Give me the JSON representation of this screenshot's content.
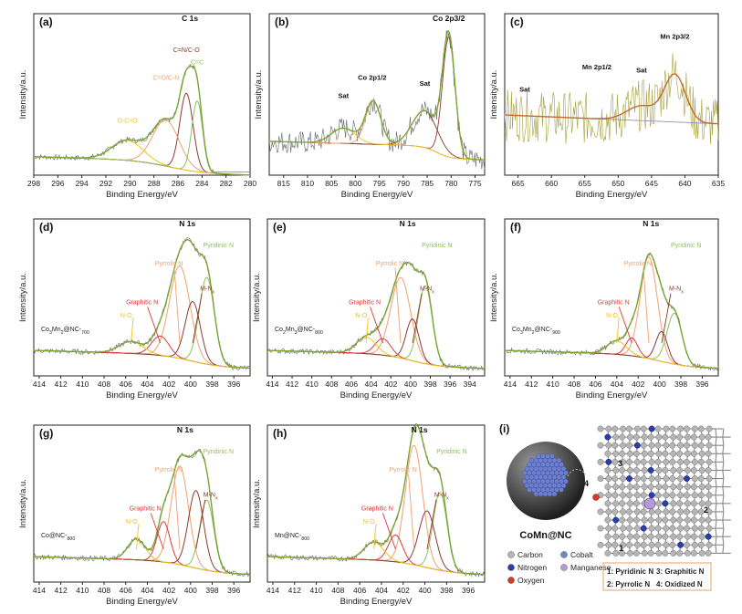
{
  "chart_data": [
    {
      "type": "line",
      "label": "(a)",
      "xlabel": "Binding Energy/eV",
      "ylabel": "Intensity/a.u.",
      "xlim": [
        298,
        280
      ],
      "xticks": [
        298,
        296,
        294,
        292,
        290,
        288,
        286,
        284,
        282,
        280
      ],
      "peaks": [
        {
          "name": "C 1s",
          "x": 285.0,
          "bold": true,
          "color": "#111111"
        },
        {
          "name": "C=N/C-O",
          "x": 285.3,
          "color": "#8b3a2f"
        },
        {
          "name": "C=O/C-N",
          "x": 287.0,
          "color": "#f0a070"
        },
        {
          "name": "C=C",
          "x": 284.4,
          "color": "#8fbf5a"
        },
        {
          "name": "O-C=O",
          "x": 290.2,
          "color": "#f0c419"
        }
      ]
    },
    {
      "type": "line",
      "label": "(b)",
      "xlabel": "Binding Energy/eV",
      "ylabel": "Intensity/a.u.",
      "xlim": [
        818,
        773
      ],
      "xticks": [
        815,
        810,
        805,
        800,
        795,
        790,
        785,
        780,
        775
      ],
      "peaks": [
        {
          "name": "Co 2p3/2",
          "x": 780.5,
          "bold": true,
          "color": "#111111"
        },
        {
          "name": "Sat",
          "x": 785.5,
          "color": "#111111"
        },
        {
          "name": "Co 2p1/2",
          "x": 796.5,
          "color": "#111111"
        },
        {
          "name": "Sat",
          "x": 802.5,
          "color": "#111111"
        }
      ]
    },
    {
      "type": "line",
      "label": "(c)",
      "xlabel": "Binding Energy/eV",
      "ylabel": "Intensity/a.u.",
      "xlim": [
        667,
        635
      ],
      "xticks": [
        665,
        660,
        655,
        650,
        645,
        640,
        635
      ],
      "peaks": [
        {
          "name": "Mn 2p3/2",
          "x": 641.5,
          "color": "#111111"
        },
        {
          "name": "Sat",
          "x": 646.5,
          "color": "#111111"
        },
        {
          "name": "Mn 2p1/2",
          "x": 653.2,
          "color": "#111111"
        },
        {
          "name": "Sat",
          "x": 664.0,
          "color": "#111111"
        }
      ]
    },
    {
      "type": "line",
      "label": "(d)",
      "sample": "Co3Mn2@NC-700",
      "xlabel": "Binding Energy/eV",
      "ylabel": "Intensity/a.u.",
      "xlim": [
        414.5,
        394.5
      ],
      "xticks": [
        414,
        412,
        410,
        408,
        406,
        404,
        402,
        400,
        398,
        396
      ],
      "peaks": [
        {
          "name": "N 1s",
          "x": 400.3,
          "bold": true,
          "color": "#111111"
        },
        {
          "name": "Pyridinic N",
          "x": 398.5,
          "color": "#8fbf5a"
        },
        {
          "name": "Pyrrolic N",
          "x": 401.0,
          "color": "#f0a070"
        },
        {
          "name": "M-Nx",
          "x": 399.8,
          "color": "#8b3a2f"
        },
        {
          "name": "Graphitic N",
          "x": 402.8,
          "color": "#d93a3a"
        },
        {
          "name": "N-Ox",
          "x": 405.5,
          "color": "#f0c419"
        }
      ]
    },
    {
      "type": "line",
      "label": "(e)",
      "sample": "Co2Mn3@NC-800",
      "xlabel": "Binding Energy/eV",
      "ylabel": "Intensity/a.u.",
      "xlim": [
        414.5,
        392.5
      ],
      "xticks": [
        414,
        412,
        410,
        408,
        406,
        404,
        402,
        400,
        398,
        396,
        394
      ],
      "peaks": [
        {
          "name": "N 1s",
          "x": 400.3,
          "bold": true,
          "color": "#111111"
        },
        {
          "name": "Pyridinic N",
          "x": 398.5,
          "color": "#8fbf5a"
        },
        {
          "name": "Pyrrolic N",
          "x": 401.0,
          "color": "#f0a070"
        },
        {
          "name": "M-Nx",
          "x": 399.8,
          "color": "#8b3a2f"
        },
        {
          "name": "Graphitic N",
          "x": 402.8,
          "color": "#d93a3a"
        },
        {
          "name": "N-Ox",
          "x": 404.5,
          "color": "#f0c419"
        }
      ]
    },
    {
      "type": "line",
      "label": "(f)",
      "sample": "Co3Mn2@NC-900",
      "xlabel": "Binding Energy/eV",
      "ylabel": "Intensity/a.u.",
      "xlim": [
        414.5,
        394.5
      ],
      "xticks": [
        414,
        412,
        410,
        408,
        406,
        404,
        402,
        400,
        398,
        396
      ],
      "peaks": [
        {
          "name": "N 1s",
          "x": 400.8,
          "bold": true,
          "color": "#111111"
        },
        {
          "name": "Pyridinic N",
          "x": 398.6,
          "color": "#8fbf5a"
        },
        {
          "name": "Pyrrolic N",
          "x": 401.0,
          "color": "#f0a070"
        },
        {
          "name": "M-Nx",
          "x": 399.8,
          "color": "#8b3a2f"
        },
        {
          "name": "Graphitic N",
          "x": 402.6,
          "color": "#d93a3a"
        },
        {
          "name": "N-Ox",
          "x": 404.0,
          "color": "#f0c419"
        }
      ]
    },
    {
      "type": "line",
      "label": "(g)",
      "sample": "Co@NC-800",
      "xlabel": "Binding Energy/eV",
      "ylabel": "Intensity/a.u.",
      "xlim": [
        414.5,
        394.5
      ],
      "xticks": [
        414,
        412,
        410,
        408,
        406,
        404,
        402,
        400,
        398,
        396
      ],
      "peaks": [
        {
          "name": "N 1s",
          "x": 400.5,
          "bold": true,
          "color": "#111111"
        },
        {
          "name": "Pyridinic N",
          "x": 398.5,
          "color": "#8fbf5a"
        },
        {
          "name": "Pyrrolic N",
          "x": 401.0,
          "color": "#f0a070"
        },
        {
          "name": "M-Nx",
          "x": 399.5,
          "color": "#8b3a2f"
        },
        {
          "name": "Graphitic N",
          "x": 402.5,
          "color": "#d93a3a"
        },
        {
          "name": "N-Ox",
          "x": 405.0,
          "color": "#f0c419"
        }
      ]
    },
    {
      "type": "line",
      "label": "(h)",
      "sample": "Mn@NC-800",
      "xlabel": "Binding Energy/eV",
      "ylabel": "Intensity/a.u.",
      "xlim": [
        414.5,
        394.5
      ],
      "xticks": [
        414,
        412,
        410,
        408,
        406,
        404,
        402,
        400,
        398,
        396
      ],
      "peaks": [
        {
          "name": "N 1s",
          "x": 400.5,
          "bold": true,
          "color": "#111111"
        },
        {
          "name": "Pyridinic N",
          "x": 398.6,
          "color": "#8fbf5a"
        },
        {
          "name": "Pyrrolic N",
          "x": 401.0,
          "color": "#f0a070"
        },
        {
          "name": "M-Nx",
          "x": 399.8,
          "color": "#8b3a2f"
        },
        {
          "name": "Graphitic N",
          "x": 402.7,
          "color": "#d93a3a"
        },
        {
          "name": "N-Ox",
          "x": 404.7,
          "color": "#f0c419"
        }
      ]
    }
  ],
  "schematic": {
    "label": "(i)",
    "title": "CoMn@NC",
    "legend": [
      {
        "name": "Carbon",
        "color": "#b5b5b5"
      },
      {
        "name": "Cobalt",
        "color": "#7088c8"
      },
      {
        "name": "Nitrogen",
        "color": "#2a3fae"
      },
      {
        "name": "Manganese",
        "color": "#b49ad6"
      },
      {
        "name": "Oxygen",
        "color": "#d23a2a"
      }
    ],
    "site_numbers": [
      "1",
      "2",
      "3",
      "4"
    ],
    "sites": [
      "1: Pyridinic N",
      "3: Graphitic N",
      "2: Pyrrolic N",
      "4: Oxidized N"
    ]
  }
}
